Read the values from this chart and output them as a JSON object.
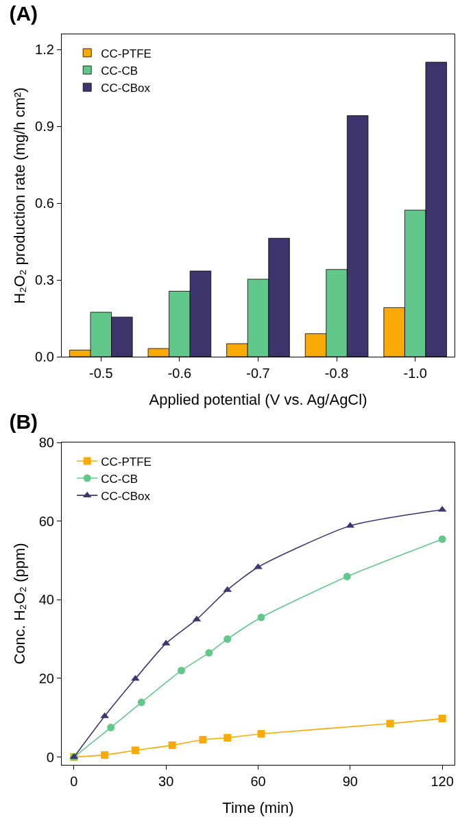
{
  "chart_data": [
    {
      "type": "bar",
      "title": "(A)",
      "xlabel": "Applied potential (V vs. Ag/AgCl)",
      "ylabel": "H₂O₂ production rate (mg/h cm²)",
      "categories": [
        "-0.5",
        "-0.6",
        "-0.7",
        "-0.8",
        "-1.0"
      ],
      "series": [
        {
          "name": "CC-PTFE",
          "color": "#f9aa06",
          "values": [
            0.026,
            0.032,
            0.051,
            0.09,
            0.192
          ]
        },
        {
          "name": "CC-CB",
          "color": "#62c78a",
          "values": [
            0.174,
            0.256,
            0.303,
            0.341,
            0.573
          ]
        },
        {
          "name": "CC-CBox",
          "color": "#3e356e",
          "values": [
            0.155,
            0.335,
            0.463,
            0.942,
            1.151
          ]
        }
      ],
      "ylim": [
        0,
        1.26
      ],
      "yticks": [
        {
          "value": 0,
          "label": "0.0"
        },
        0.3,
        0.6,
        0.9,
        {
          "value": 1.2,
          "label": "1.2"
        }
      ],
      "grid": false,
      "legend": "top left"
    },
    {
      "type": "line",
      "title": "(B)",
      "xlabel": "Time (min)",
      "ylabel": "Conc. H₂O₂ (ppm)",
      "series": [
        {
          "name": "CC-PTFE",
          "color": "#f9aa06",
          "marker": "square",
          "x": [
            0,
            10,
            20,
            32,
            42,
            50,
            61,
            103,
            120
          ],
          "values": [
            0,
            0.5,
            1.7,
            3.0,
            4.4,
            4.9,
            5.9,
            8.5,
            9.8
          ]
        },
        {
          "name": "CC-CB",
          "color": "#62c78a",
          "marker": "circle",
          "x": [
            0,
            12,
            22,
            35,
            44,
            50,
            61,
            89,
            120
          ],
          "values": [
            0,
            7.5,
            13.9,
            22.0,
            26.5,
            30.0,
            35.5,
            45.9,
            55.4
          ]
        },
        {
          "name": "CC-CBox",
          "color": "#3e356e",
          "marker": "triangle",
          "x": [
            0,
            10,
            20,
            30,
            40,
            50,
            60,
            90,
            120
          ],
          "values": [
            0,
            10.4,
            19.9,
            28.9,
            35.0,
            42.5,
            48.3,
            58.8,
            62.9
          ]
        }
      ],
      "xlim": [
        -4,
        124
      ],
      "xticks": [
        0,
        30,
        60,
        90,
        120
      ],
      "ylim": [
        -2,
        80
      ],
      "yticks": [
        0,
        20,
        40,
        60,
        80
      ],
      "grid": false,
      "legend": "top left",
      "line_style": "solid"
    }
  ]
}
